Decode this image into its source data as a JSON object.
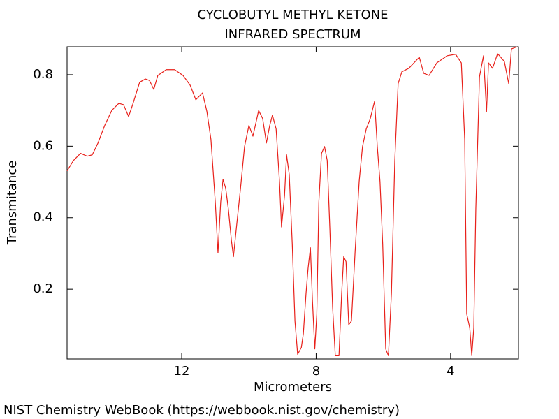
{
  "chart_data": {
    "type": "line",
    "title": "CYCLOBUTYL METHYL KETONE",
    "subtitle": "INFRARED SPECTRUM",
    "x_label": "Micrometers",
    "y_label": "Transmitance",
    "source": "NIST Chemistry WebBook (https://webbook.nist.gov/chemistry)",
    "color": "#e8201a",
    "xlim": [
      15.41,
      1.98
    ],
    "ylim": [
      0.005,
      0.878
    ],
    "xticks": [
      12,
      8,
      4
    ],
    "yticks": [
      0.2,
      0.4,
      0.6,
      0.8
    ],
    "x": [
      15.41,
      15.22,
      15.01,
      14.81,
      14.66,
      14.49,
      14.29,
      14.08,
      13.87,
      13.73,
      13.58,
      13.46,
      13.25,
      13.08,
      12.96,
      12.83,
      12.71,
      12.46,
      12.21,
      11.96,
      11.75,
      11.58,
      11.38,
      11.25,
      11.13,
      11.0,
      10.92,
      10.84,
      10.77,
      10.69,
      10.61,
      10.52,
      10.46,
      10.38,
      10.25,
      10.13,
      10.0,
      9.88,
      9.71,
      9.59,
      9.48,
      9.38,
      9.3,
      9.19,
      9.09,
      9.03,
      8.94,
      8.88,
      8.8,
      8.71,
      8.63,
      8.55,
      8.44,
      8.38,
      8.3,
      8.24,
      8.17,
      8.11,
      8.04,
      7.98,
      7.92,
      7.84,
      7.75,
      7.67,
      7.59,
      7.51,
      7.43,
      7.32,
      7.24,
      7.18,
      7.11,
      7.03,
      6.95,
      6.84,
      6.72,
      6.62,
      6.51,
      6.39,
      6.26,
      6.18,
      6.1,
      6.02,
      5.93,
      5.85,
      5.76,
      5.66,
      5.56,
      5.45,
      5.24,
      4.93,
      4.8,
      4.64,
      4.41,
      4.1,
      3.85,
      3.68,
      3.58,
      3.52,
      3.43,
      3.37,
      3.31,
      3.25,
      3.14,
      3.02,
      2.93,
      2.87,
      2.75,
      2.6,
      2.4,
      2.27,
      2.19,
      2.02
    ],
    "values": [
      0.531,
      0.56,
      0.58,
      0.572,
      0.576,
      0.609,
      0.658,
      0.7,
      0.72,
      0.716,
      0.683,
      0.716,
      0.779,
      0.788,
      0.784,
      0.759,
      0.798,
      0.814,
      0.814,
      0.798,
      0.771,
      0.73,
      0.749,
      0.697,
      0.619,
      0.443,
      0.302,
      0.443,
      0.507,
      0.482,
      0.423,
      0.336,
      0.291,
      0.365,
      0.482,
      0.599,
      0.658,
      0.628,
      0.7,
      0.677,
      0.609,
      0.658,
      0.687,
      0.648,
      0.501,
      0.374,
      0.462,
      0.576,
      0.521,
      0.326,
      0.111,
      0.018,
      0.037,
      0.076,
      0.189,
      0.258,
      0.316,
      0.169,
      0.033,
      0.131,
      0.443,
      0.58,
      0.599,
      0.56,
      0.365,
      0.15,
      0.014,
      0.014,
      0.189,
      0.291,
      0.277,
      0.101,
      0.111,
      0.306,
      0.501,
      0.599,
      0.648,
      0.677,
      0.726,
      0.599,
      0.501,
      0.326,
      0.033,
      0.014,
      0.189,
      0.56,
      0.775,
      0.808,
      0.818,
      0.849,
      0.804,
      0.798,
      0.833,
      0.853,
      0.857,
      0.833,
      0.619,
      0.131,
      0.092,
      0.014,
      0.092,
      0.423,
      0.794,
      0.853,
      0.697,
      0.833,
      0.818,
      0.859,
      0.837,
      0.775,
      0.872,
      0.878
    ]
  }
}
